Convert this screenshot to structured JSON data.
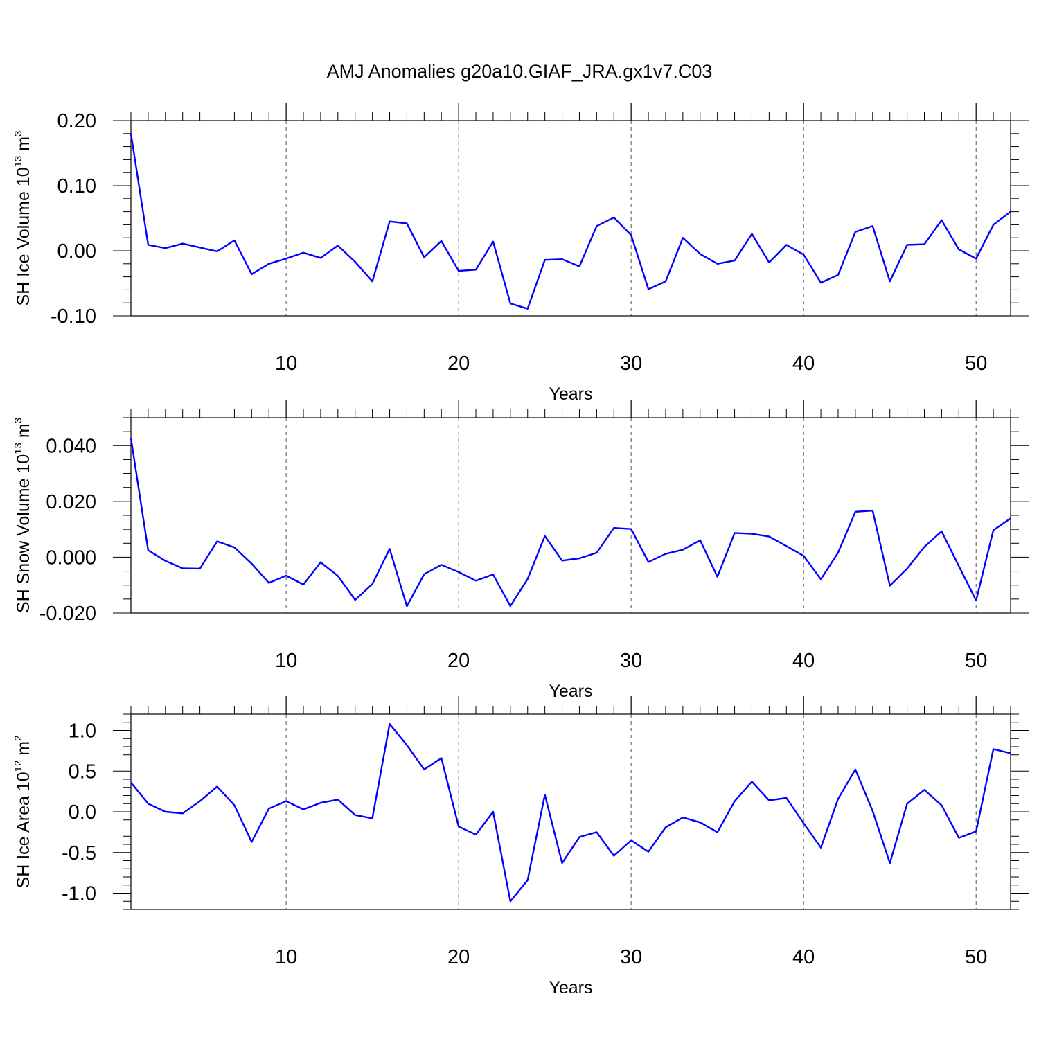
{
  "title": "AMJ Anomalies g20a10.GIAF_JRA.gx1v7.C03",
  "line_color": "#0000ff",
  "chart_data": [
    {
      "type": "line",
      "ylabel": "SH Ice Volume 10",
      "ylabel_sup": "13",
      "ylabel_unit": " m",
      "ylabel_unit_sup": "3",
      "xlabel": "Years",
      "xlim": [
        1,
        52
      ],
      "ylim": [
        -0.1,
        0.2
      ],
      "x_ticks": [
        10,
        20,
        30,
        40,
        50
      ],
      "x_tick_labels": [
        "10",
        "20",
        "30",
        "40",
        "50"
      ],
      "y_ticks": [
        -0.1,
        0.0,
        0.1,
        0.2
      ],
      "y_tick_labels": [
        "-0.10",
        "0.00",
        "0.10",
        "0.20"
      ],
      "y_minor_step": 0.02,
      "grid_x": "dashed",
      "x": [
        1,
        2,
        3,
        4,
        5,
        6,
        7,
        8,
        9,
        10,
        11,
        12,
        13,
        14,
        15,
        16,
        17,
        18,
        19,
        20,
        21,
        22,
        23,
        24,
        25,
        26,
        27,
        28,
        29,
        30,
        31,
        32,
        33,
        34,
        35,
        36,
        37,
        38,
        39,
        40,
        41,
        42,
        43,
        44,
        45,
        46,
        47,
        48,
        49,
        50,
        51,
        52
      ],
      "values": [
        0.18,
        0.009,
        0.004,
        0.011,
        0.005,
        -0.001,
        0.016,
        -0.036,
        -0.02,
        -0.012,
        -0.003,
        -0.011,
        0.008,
        -0.017,
        -0.047,
        0.045,
        0.042,
        -0.01,
        0.015,
        -0.031,
        -0.029,
        0.014,
        -0.081,
        -0.089,
        -0.014,
        -0.013,
        -0.024,
        0.038,
        0.051,
        0.024,
        -0.059,
        -0.047,
        0.02,
        -0.005,
        -0.02,
        -0.015,
        0.026,
        -0.018,
        0.009,
        -0.006,
        -0.049,
        -0.037,
        0.029,
        0.038,
        -0.047,
        0.009,
        0.01,
        0.047,
        0.002,
        -0.012,
        0.04,
        0.06
      ]
    },
    {
      "type": "line",
      "ylabel": "SH Snow Volume 10",
      "ylabel_sup": "13",
      "ylabel_unit": " m",
      "ylabel_unit_sup": "3",
      "xlabel": "Years",
      "xlim": [
        1,
        52
      ],
      "ylim": [
        -0.02,
        0.05
      ],
      "x_ticks": [
        10,
        20,
        30,
        40,
        50
      ],
      "x_tick_labels": [
        "10",
        "20",
        "30",
        "40",
        "50"
      ],
      "y_ticks": [
        -0.02,
        0.0,
        0.02,
        0.04
      ],
      "y_tick_labels": [
        "-0.020",
        "0.000",
        "0.020",
        "0.040"
      ],
      "y_minor_step": 0.005,
      "grid_x": "dashed",
      "x": [
        1,
        2,
        3,
        4,
        5,
        6,
        7,
        8,
        9,
        10,
        11,
        12,
        13,
        14,
        15,
        16,
        17,
        18,
        19,
        20,
        21,
        22,
        23,
        24,
        25,
        26,
        27,
        28,
        29,
        30,
        31,
        32,
        33,
        34,
        35,
        36,
        37,
        38,
        39,
        40,
        41,
        42,
        43,
        44,
        45,
        46,
        47,
        48,
        49,
        50,
        51,
        52
      ],
      "values": [
        0.0427,
        0.0025,
        -0.0013,
        -0.004,
        -0.0041,
        0.0057,
        0.0035,
        -0.0023,
        -0.0092,
        -0.0066,
        -0.0098,
        -0.0018,
        -0.0067,
        -0.0153,
        -0.0096,
        0.003,
        -0.0176,
        -0.0061,
        -0.0027,
        -0.0053,
        -0.0084,
        -0.0062,
        -0.0175,
        -0.0078,
        0.0076,
        -0.0012,
        -0.0004,
        0.0016,
        0.0105,
        0.0101,
        -0.0017,
        0.0012,
        0.0027,
        0.0061,
        -0.007,
        0.0087,
        0.0084,
        0.0074,
        0.004,
        0.0005,
        -0.0079,
        0.0017,
        0.0163,
        0.0167,
        -0.0102,
        -0.0041,
        0.0037,
        0.0093,
        -0.0032,
        -0.0155,
        0.0097,
        0.0139
      ]
    },
    {
      "type": "line",
      "ylabel": "SH Ice Area 10",
      "ylabel_sup": "12",
      "ylabel_unit": " m",
      "ylabel_unit_sup": "2",
      "xlabel": "Years",
      "xlim": [
        1,
        52
      ],
      "ylim": [
        -1.2,
        1.2
      ],
      "x_ticks": [
        10,
        20,
        30,
        40,
        50
      ],
      "x_tick_labels": [
        "10",
        "20",
        "30",
        "40",
        "50"
      ],
      "y_ticks": [
        -1.0,
        -0.5,
        0.0,
        0.5,
        1.0
      ],
      "y_tick_labels": [
        "-1.0",
        "-0.5",
        "0.0",
        "0.5",
        "1.0"
      ],
      "y_minor_step": 0.1,
      "grid_x": "dashed",
      "x": [
        1,
        2,
        3,
        4,
        5,
        6,
        7,
        8,
        9,
        10,
        11,
        12,
        13,
        14,
        15,
        16,
        17,
        18,
        19,
        20,
        21,
        22,
        23,
        24,
        25,
        26,
        27,
        28,
        29,
        30,
        31,
        32,
        33,
        34,
        35,
        36,
        37,
        38,
        39,
        40,
        41,
        42,
        43,
        44,
        45,
        46,
        47,
        48,
        49,
        50,
        51,
        52
      ],
      "values": [
        0.36,
        0.1,
        0.0,
        -0.02,
        0.13,
        0.31,
        0.08,
        -0.37,
        0.04,
        0.13,
        0.03,
        0.11,
        0.15,
        -0.04,
        -0.08,
        1.08,
        0.82,
        0.52,
        0.66,
        -0.18,
        -0.28,
        0.0,
        -1.1,
        -0.84,
        0.21,
        -0.63,
        -0.31,
        -0.25,
        -0.54,
        -0.35,
        -0.49,
        -0.19,
        -0.07,
        -0.13,
        -0.25,
        0.13,
        0.37,
        0.14,
        0.17,
        -0.14,
        -0.44,
        0.16,
        0.52,
        0.01,
        -0.63,
        0.1,
        0.27,
        0.08,
        -0.32,
        -0.24,
        0.77,
        0.72
      ]
    }
  ]
}
